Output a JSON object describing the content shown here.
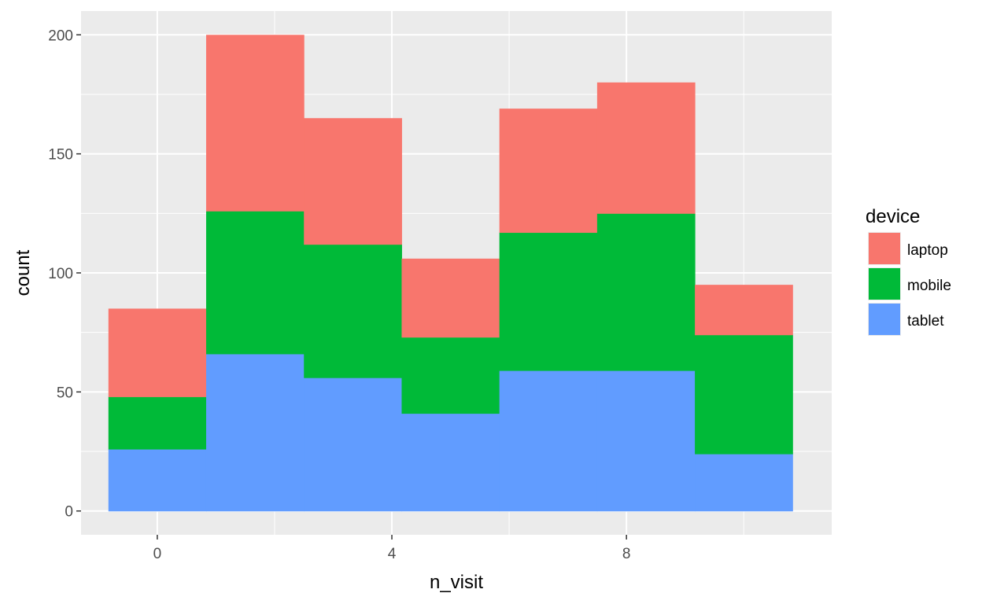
{
  "chart_data": {
    "type": "bar",
    "stacked": true,
    "xlabel": "n_visit",
    "ylabel": "count",
    "x_ticks": [
      0,
      4,
      8
    ],
    "y_ticks": [
      0,
      50,
      100,
      150,
      200
    ],
    "xlim": [
      -1.3,
      11.5
    ],
    "ylim": [
      -10,
      210
    ],
    "bins": [
      {
        "start": -0.8333,
        "end": 0.8333
      },
      {
        "start": 0.8333,
        "end": 2.5
      },
      {
        "start": 2.5,
        "end": 4.1667
      },
      {
        "start": 4.1667,
        "end": 5.8333
      },
      {
        "start": 5.8333,
        "end": 7.5
      },
      {
        "start": 7.5,
        "end": 9.1667
      },
      {
        "start": 9.1667,
        "end": 10.8333
      }
    ],
    "series": [
      {
        "name": "tablet",
        "color": "#619CFF",
        "values": [
          26,
          66,
          56,
          41,
          59,
          59,
          24
        ]
      },
      {
        "name": "mobile",
        "color": "#00BA38",
        "values": [
          22,
          60,
          56,
          32,
          58,
          66,
          50
        ]
      },
      {
        "name": "laptop",
        "color": "#F8766D",
        "values": [
          37,
          74,
          53,
          33,
          52,
          55,
          21
        ]
      }
    ],
    "legend": {
      "title": "device",
      "position": "right",
      "entries": [
        "laptop",
        "mobile",
        "tablet"
      ]
    },
    "grid": true,
    "panel_background": "#EBEBEB",
    "grid_color": "#FFFFFF"
  }
}
